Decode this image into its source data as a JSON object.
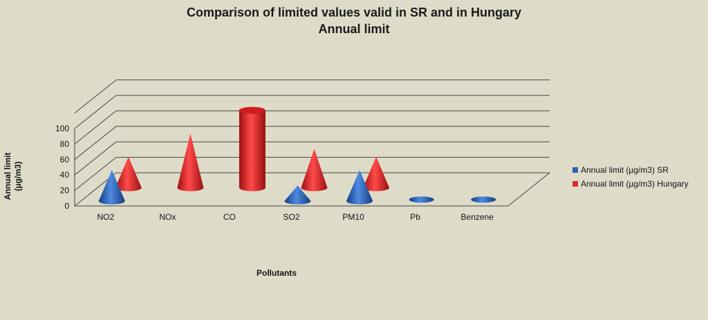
{
  "chart_data": {
    "type": "bar",
    "title": "Comparison of limited values valid in SR and in Hungary",
    "subtitle": "Annual limit",
    "xlabel": "Pollutants",
    "ylabel": "Annual limit (µg/m3)",
    "categories": [
      "NO2",
      "NOx",
      "CO",
      "SO2",
      "PM10",
      "Pb",
      "Benzene"
    ],
    "yticks": [
      "0",
      "20",
      "40",
      "60",
      "80",
      "100"
    ],
    "ylim": [
      0,
      100
    ],
    "grid": true,
    "legend_position": "right",
    "series": [
      {
        "name": "Annual limit (µg/m3) SR",
        "color": "#2b62b8",
        "shape": "cone",
        "values": [
          40,
          null,
          null,
          20,
          40,
          0.5,
          5
        ]
      },
      {
        "name": "Annual limit (µg/m3) Hungary",
        "color": "#e02a2a",
        "shape": "cone-cylinder",
        "values": [
          40,
          70,
          100,
          50,
          40,
          null,
          null
        ]
      }
    ]
  }
}
